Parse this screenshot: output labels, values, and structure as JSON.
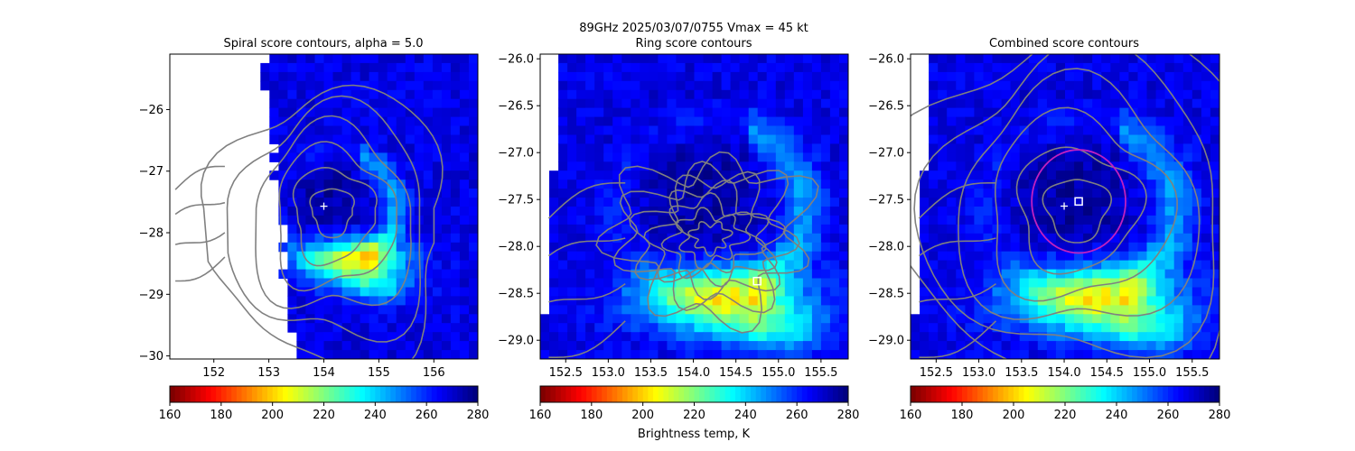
{
  "suptitle": "89GHz  2025/03/07/0755    Vmax = 45 kt",
  "colorbar_label": "Brightness temp, K",
  "colormap": [
    "#800000",
    "#ff0000",
    "#ff8000",
    "#ffff00",
    "#80ff80",
    "#00ffff",
    "#0080ff",
    "#0000ff",
    "#000080"
  ],
  "contour_color": "#808080",
  "ring_color": "#c020c0",
  "chart_data": [
    {
      "type": "heatmap",
      "title": "Spiral score contours, alpha =  5.0",
      "xlim": [
        151.2,
        156.8
      ],
      "ylim": [
        -30.05,
        -25.1
      ],
      "xticks": [
        152,
        153,
        154,
        155,
        156
      ],
      "xtick_labels": [
        "152",
        "153",
        "154",
        "155",
        "156"
      ],
      "yticks": [
        -26,
        -27,
        -28,
        -29,
        -30
      ],
      "ytick_labels": [
        "−26",
        "−27",
        "−28",
        "−29",
        "−30"
      ],
      "markers": [
        {
          "kind": "plus",
          "x": 154.0,
          "y": -27.57
        }
      ],
      "colorbar": {
        "range": [
          160,
          280
        ],
        "ticks": [
          160,
          180,
          200,
          220,
          240,
          260,
          280
        ]
      }
    },
    {
      "type": "heatmap",
      "title": "Ring score contours",
      "xlim": [
        152.2,
        155.82
      ],
      "ylim": [
        -29.2,
        -25.95
      ],
      "xticks": [
        152.5,
        153.0,
        153.5,
        154.0,
        154.5,
        155.0,
        155.5
      ],
      "xtick_labels": [
        "152.5",
        "153.0",
        "153.5",
        "154.0",
        "154.5",
        "155.0",
        "155.5"
      ],
      "yticks": [
        -26.0,
        -26.5,
        -27.0,
        -27.5,
        -28.0,
        -28.5,
        -29.0
      ],
      "ytick_labels": [
        "−26.0",
        "−26.5",
        "−27.0",
        "−27.5",
        "−28.0",
        "−28.5",
        "−29.0"
      ],
      "markers": [
        {
          "kind": "square",
          "x": 154.75,
          "y": -28.37
        }
      ],
      "colorbar": {
        "range": [
          160,
          280
        ],
        "ticks": [
          160,
          180,
          200,
          220,
          240,
          260,
          280
        ]
      }
    },
    {
      "type": "heatmap",
      "title": "Combined score contours",
      "xlim": [
        152.2,
        155.82
      ],
      "ylim": [
        -29.2,
        -25.95
      ],
      "xticks": [
        152.5,
        153.0,
        153.5,
        154.0,
        154.5,
        155.0,
        155.5
      ],
      "xtick_labels": [
        "152.5",
        "153.0",
        "153.5",
        "154.0",
        "154.5",
        "155.0",
        "155.5"
      ],
      "yticks": [
        -26.0,
        -26.5,
        -27.0,
        -27.5,
        -28.0,
        -28.5,
        -29.0
      ],
      "ytick_labels": [
        "−26.0",
        "−26.5",
        "−27.0",
        "−27.5",
        "−28.0",
        "−28.5",
        "−29.0"
      ],
      "markers": [
        {
          "kind": "plus",
          "x": 154.0,
          "y": -27.57
        },
        {
          "kind": "square",
          "x": 154.17,
          "y": -27.52
        }
      ],
      "ring": {
        "cx": 154.17,
        "cy": -27.52,
        "r": 0.55
      },
      "colorbar": {
        "range": [
          160,
          280
        ],
        "ticks": [
          160,
          180,
          200,
          220,
          240,
          260,
          280
        ]
      }
    }
  ]
}
